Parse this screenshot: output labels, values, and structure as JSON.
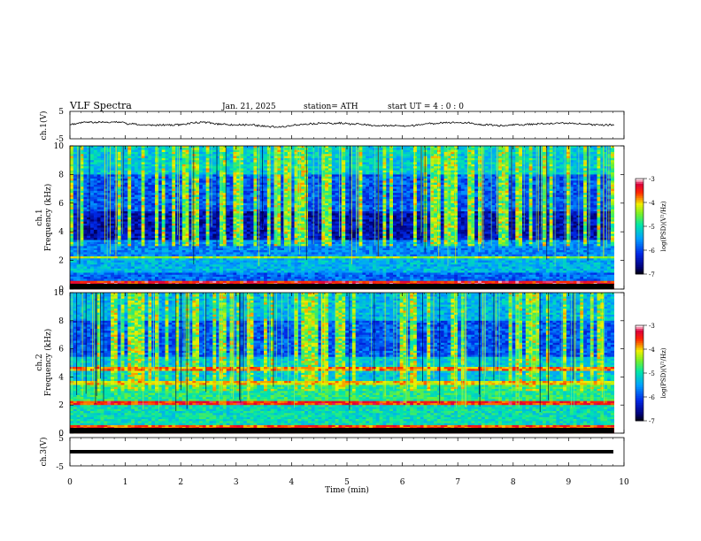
{
  "header": {
    "title": "VLF  Spectra",
    "date": "Jan. 21, 2025",
    "station": "station= ATH",
    "start": "start  UT  =   4  : 0   : 0"
  },
  "chart_data": [
    {
      "type": "line",
      "panel": "ch1-waveform",
      "ylabel": "ch.1(V)",
      "ylim": [
        -5,
        5
      ],
      "yticks": [
        "5",
        "-5"
      ],
      "xlim": [
        0,
        10
      ],
      "series": [
        {
          "values_note_mean": 0.2
        }
      ]
    },
    {
      "type": "heatmap",
      "panel": "ch1-spectrogram",
      "ylabel": "ch.1\nFrequency  (kHz)",
      "ylabel_top": "ch.1",
      "ylabel_bottom": "Frequency  (kHz)",
      "ylim": [
        0,
        10
      ],
      "yticks": [
        "0",
        "2",
        "4",
        "6",
        "8",
        "10"
      ],
      "xlim": [
        0,
        9.82
      ],
      "colorbar": {
        "label": "log(PSD)(V²/Hz)",
        "ticks": [
          "-3",
          "-4",
          "-5",
          "-6",
          "-7"
        ],
        "range": [
          -7,
          -3
        ]
      }
    },
    {
      "type": "heatmap",
      "panel": "ch2-spectrogram",
      "ylabel_top": "ch.2",
      "ylabel_bottom": "Frequency  (kHz)",
      "ylim": [
        0,
        10
      ],
      "yticks": [
        "0",
        "2",
        "4",
        "6",
        "8",
        "10"
      ],
      "xlim": [
        0,
        9.82
      ],
      "colorbar": {
        "label": "log(PSD)(V²/Hz)",
        "ticks": [
          "-3",
          "-4",
          "-5",
          "-6",
          "-7"
        ],
        "range": [
          -7,
          -3
        ]
      }
    },
    {
      "type": "line",
      "panel": "ch3-waveform",
      "ylabel": "ch.3(V)",
      "ylim": [
        -5,
        5
      ],
      "yticks": [
        "5",
        "-5"
      ],
      "xlim": [
        0,
        10
      ],
      "xlabel": "Time  (min)",
      "xticks": [
        "0",
        "1",
        "2",
        "3",
        "4",
        "5",
        "6",
        "7",
        "8",
        "9",
        "10"
      ],
      "series": [
        {
          "values_note_mean": 0.0
        }
      ]
    }
  ]
}
